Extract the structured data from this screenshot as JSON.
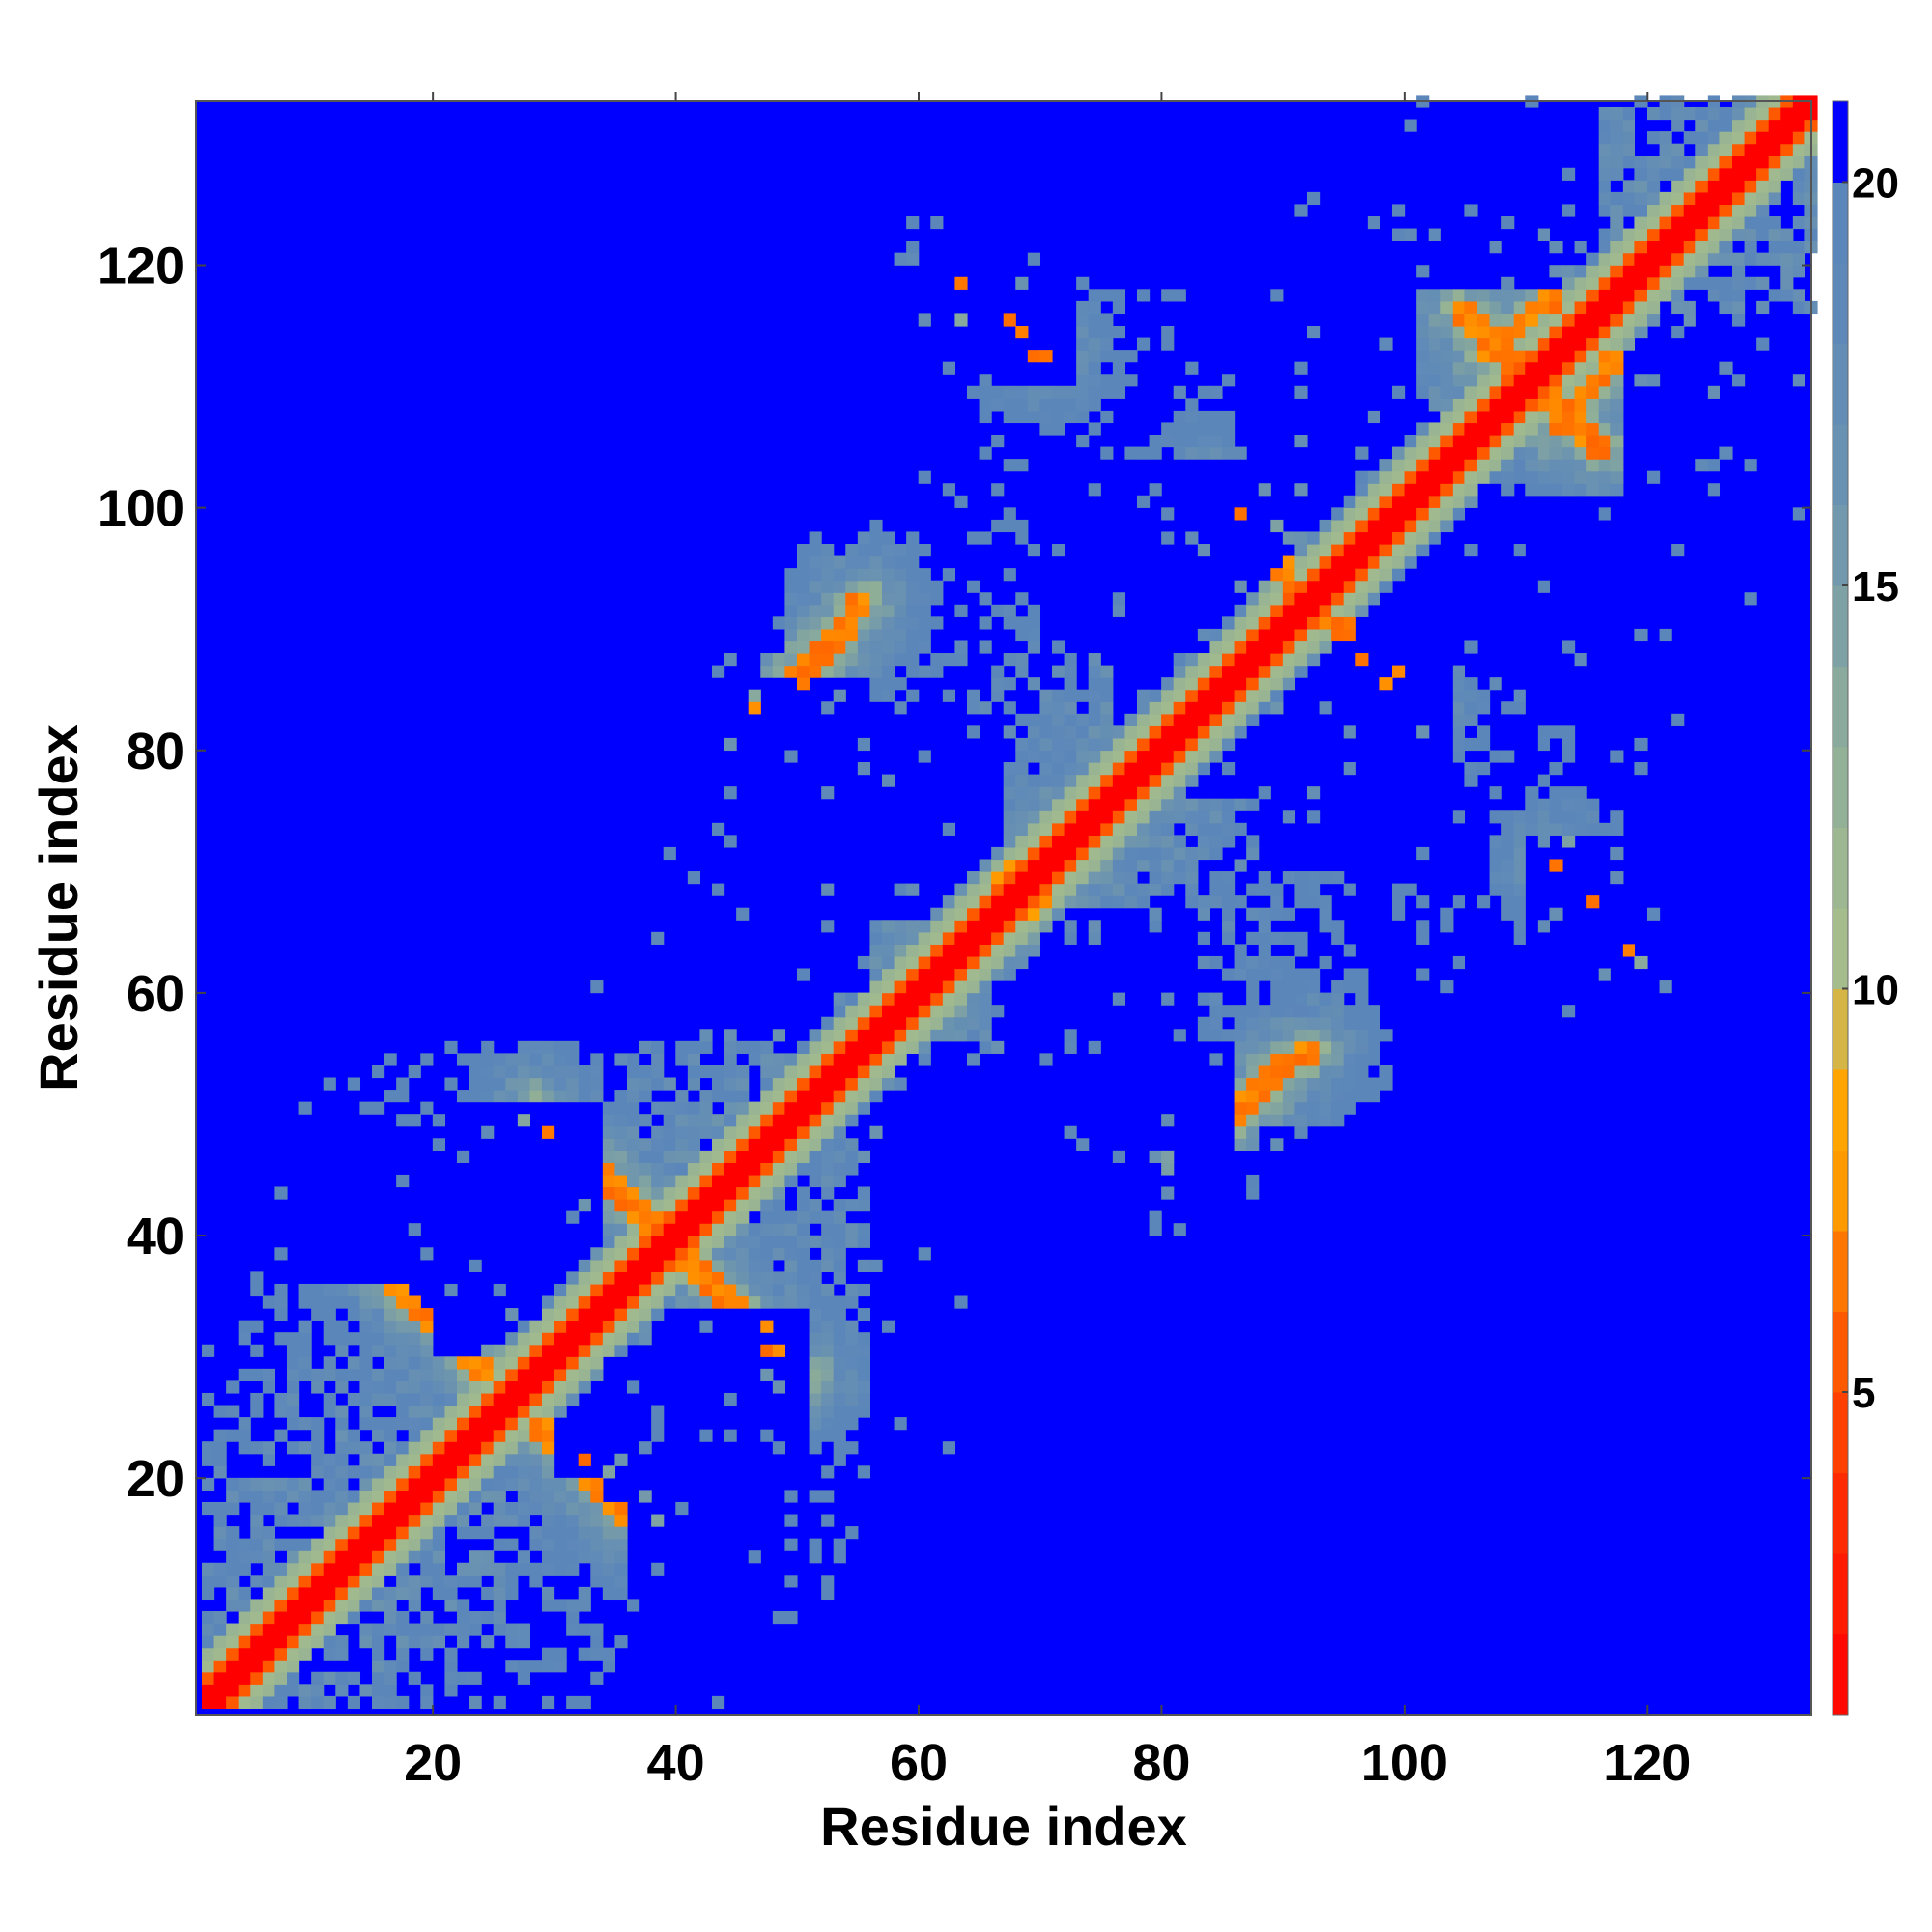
{
  "chart_data": {
    "type": "heatmap",
    "title": "",
    "xlabel": "Residue index",
    "ylabel": "Residue index",
    "n_residues": 133,
    "xlim": [
      1,
      133
    ],
    "ylim": [
      1,
      133
    ],
    "x_ticks": [
      20,
      40,
      60,
      80,
      100,
      120
    ],
    "y_ticks": [
      20,
      40,
      60,
      80,
      100,
      120
    ],
    "colorbar": {
      "range": [
        1,
        21
      ],
      "ticks": [
        5,
        10,
        15,
        20
      ],
      "stops": [
        {
          "value": 1,
          "color": "#ff0000"
        },
        {
          "value": 4,
          "color": "#ff3300"
        },
        {
          "value": 6,
          "color": "#ff6600"
        },
        {
          "value": 7.5,
          "color": "#ff9900"
        },
        {
          "value": 9,
          "color": "#ffaa00"
        },
        {
          "value": 10,
          "color": "#a9bf8a"
        },
        {
          "value": 13,
          "color": "#8fae98"
        },
        {
          "value": 16,
          "color": "#6b93b0"
        },
        {
          "value": 19,
          "color": "#5b86ba"
        },
        {
          "value": 20.3,
          "color": "#0000ff"
        }
      ]
    },
    "value_meaning": "pairwise residue distance; diagonal min, blue saturated beyond ~20",
    "contact_features": [
      {
        "kind": "diagonal",
        "from": [
          1,
          1
        ],
        "to": [
          133,
          133
        ],
        "value": 1
      },
      {
        "kind": "antiparallel",
        "from": [
          16,
          36
        ],
        "to": [
          24,
          28
        ],
        "value": 6
      },
      {
        "kind": "antiparallel",
        "from": [
          28,
          50
        ],
        "to": [
          38,
          40
        ],
        "value": 6
      },
      {
        "kind": "antiparallel",
        "from": [
          46,
          82
        ],
        "to": [
          55,
          92
        ],
        "value": 6
      },
      {
        "kind": "antiparallel",
        "from": [
          62,
          60
        ],
        "to": [
          67,
          67
        ],
        "value": 7
      },
      {
        "kind": "parallel",
        "from": [
          66,
          68
        ],
        "to": [
          79,
          80
        ],
        "value": 7
      },
      {
        "kind": "antiparallel",
        "from": [
          62,
          118
        ],
        "to": [
          70,
          112
        ],
        "value": 6
      },
      {
        "kind": "antiparallel",
        "from": [
          82,
          46
        ],
        "to": [
          90,
          54
        ],
        "value": 6
      },
      {
        "kind": "antiparallel",
        "from": [
          84,
          100
        ],
        "to": [
          91,
          92
        ],
        "value": 6
      },
      {
        "kind": "antiparallel",
        "from": [
          94,
          90
        ],
        "to": [
          101,
          84
        ],
        "value": 6
      },
      {
        "kind": "antiparallel",
        "from": [
          104,
          116
        ],
        "to": [
          110,
          110
        ],
        "value": 6
      },
      {
        "kind": "antiparallel",
        "from": [
          112,
          106
        ],
        "to": [
          117,
          112
        ],
        "value": 6
      },
      {
        "kind": "antiparallel",
        "from": [
          113,
          70
        ],
        "to": [
          118,
          63
        ],
        "value": 6
      }
    ],
    "blue_regions": [
      {
        "x": [
          20,
          33
        ],
        "y": [
          30,
          50
        ]
      },
      {
        "x": [
          34,
          48
        ],
        "y": [
          18,
          30
        ]
      },
      {
        "x": [
          48,
          55
        ],
        "y": [
          55,
          85
        ]
      },
      {
        "x": [
          34,
          45
        ],
        "y": [
          98,
          125
        ]
      },
      {
        "x": [
          1,
          18
        ],
        "y": [
          36,
          48
        ]
      },
      {
        "x": [
          1,
          48
        ],
        "y": [
          56,
          85
        ]
      },
      {
        "x": [
          1,
          30
        ],
        "y": [
          103,
          115
        ]
      },
      {
        "x": [
          56,
          100
        ],
        "y": [
          1,
          30
        ]
      },
      {
        "x": [
          58,
          90
        ],
        "y": [
          30,
          46
        ]
      },
      {
        "x": [
          88,
          133
        ],
        "y": [
          30,
          48
        ]
      },
      {
        "x": [
          100,
          118
        ],
        "y": [
          1,
          30
        ]
      },
      {
        "x": [
          70,
          95
        ],
        "y": [
          88,
          103
        ]
      },
      {
        "x": [
          91,
          103
        ],
        "y": [
          70,
          82
        ]
      },
      {
        "x": [
          98,
          120
        ],
        "y": [
          86,
          100
        ]
      },
      {
        "x": [
          120,
          133
        ],
        "y": [
          50,
          80
        ]
      },
      {
        "x": [
          52,
          72
        ],
        "y": [
          110,
          133
        ]
      },
      {
        "x": [
          82,
          100
        ],
        "y": [
          110,
          133
        ]
      },
      {
        "x": [
          118,
          133
        ],
        "y": [
          100,
          115
        ]
      },
      {
        "x": [
          76,
          88
        ],
        "y": [
          76,
          82
        ]
      },
      {
        "x": [
          66,
          82
        ],
        "y": [
          56,
          66
        ]
      }
    ]
  }
}
